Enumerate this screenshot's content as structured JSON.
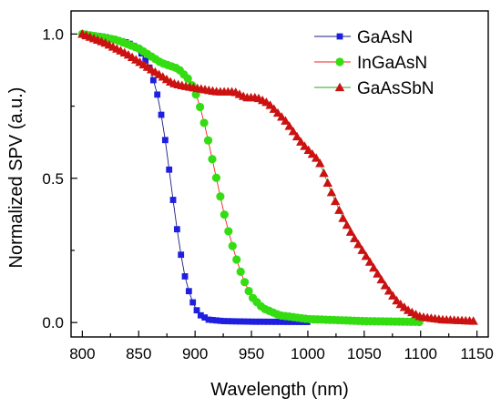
{
  "chart_data": {
    "type": "scatter",
    "title": "",
    "xlabel": "Wavelength (nm)",
    "ylabel": "Normalized SPV (a.u.)",
    "xlim": [
      790,
      1160
    ],
    "ylim": [
      -0.05,
      1.08
    ],
    "xticks": [
      800,
      850,
      900,
      950,
      1000,
      1050,
      1100,
      1150
    ],
    "yticks": [
      0.0,
      0.5,
      1.0
    ],
    "ytick_labels": [
      "0.0",
      "0.5",
      "1.0"
    ],
    "grid": false,
    "legend": "top-right",
    "series": [
      {
        "name": "GaAsN",
        "color": "#1f1fe0",
        "line_color": "#1a1a80",
        "marker": "square",
        "step": 3.5,
        "points": [
          [
            800,
            1.0
          ],
          [
            820,
            0.99
          ],
          [
            840,
            0.97
          ],
          [
            850,
            0.95
          ],
          [
            860,
            0.88
          ],
          [
            866,
            0.8
          ],
          [
            870,
            0.72
          ],
          [
            874,
            0.62
          ],
          [
            877,
            0.53
          ],
          [
            880,
            0.44
          ],
          [
            883,
            0.35
          ],
          [
            886,
            0.27
          ],
          [
            889,
            0.2
          ],
          [
            892,
            0.14
          ],
          [
            896,
            0.09
          ],
          [
            900,
            0.05
          ],
          [
            905,
            0.025
          ],
          [
            912,
            0.01
          ],
          [
            925,
            0.005
          ],
          [
            950,
            0.003
          ],
          [
            1000,
            0.002
          ]
        ]
      },
      {
        "name": "InGaAsN",
        "color": "#33dd11",
        "line_color": "#ee2222",
        "marker": "circle",
        "step": 3.6,
        "points": [
          [
            800,
            1.0
          ],
          [
            830,
            0.98
          ],
          [
            850,
            0.95
          ],
          [
            870,
            0.9
          ],
          [
            885,
            0.88
          ],
          [
            895,
            0.84
          ],
          [
            900,
            0.8
          ],
          [
            905,
            0.74
          ],
          [
            910,
            0.66
          ],
          [
            915,
            0.57
          ],
          [
            920,
            0.48
          ],
          [
            925,
            0.39
          ],
          [
            930,
            0.31
          ],
          [
            935,
            0.24
          ],
          [
            940,
            0.18
          ],
          [
            945,
            0.13
          ],
          [
            950,
            0.09
          ],
          [
            960,
            0.05
          ],
          [
            975,
            0.025
          ],
          [
            1000,
            0.012
          ],
          [
            1050,
            0.005
          ],
          [
            1100,
            0.002
          ]
        ]
      },
      {
        "name": "GaAsSbN",
        "color": "#cc1111",
        "line_color": "#22aa22",
        "marker": "triangle",
        "step": 3.4,
        "points": [
          [
            800,
            1.0
          ],
          [
            820,
            0.97
          ],
          [
            840,
            0.93
          ],
          [
            860,
            0.88
          ],
          [
            880,
            0.83
          ],
          [
            890,
            0.82
          ],
          [
            905,
            0.81
          ],
          [
            920,
            0.8
          ],
          [
            935,
            0.8
          ],
          [
            945,
            0.78
          ],
          [
            955,
            0.78
          ],
          [
            965,
            0.76
          ],
          [
            980,
            0.7
          ],
          [
            995,
            0.62
          ],
          [
            1010,
            0.56
          ],
          [
            1020,
            0.46
          ],
          [
            1030,
            0.37
          ],
          [
            1040,
            0.3
          ],
          [
            1050,
            0.24
          ],
          [
            1060,
            0.18
          ],
          [
            1070,
            0.12
          ],
          [
            1080,
            0.07
          ],
          [
            1090,
            0.04
          ],
          [
            1100,
            0.02
          ],
          [
            1120,
            0.01
          ],
          [
            1150,
            0.005
          ]
        ]
      }
    ]
  }
}
